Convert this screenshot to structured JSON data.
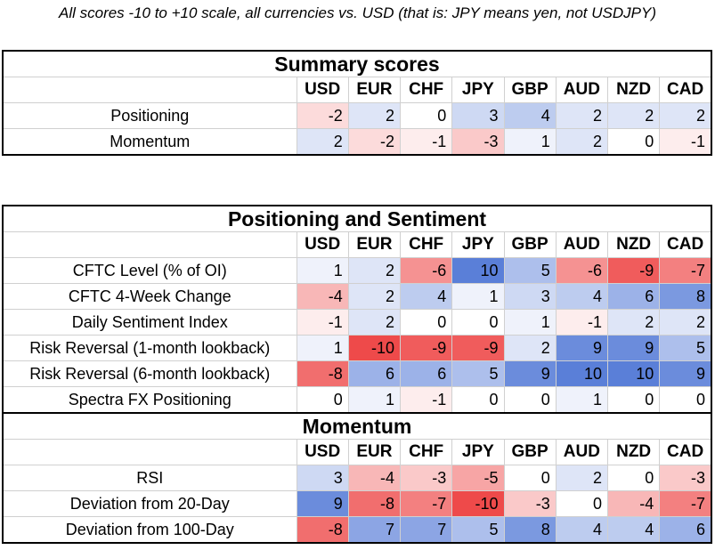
{
  "note": "All scores -10 to +10 scale, all currencies vs. USD (that is: JPY means yen, not USDJPY)",
  "currencies": [
    "USD",
    "EUR",
    "CHF",
    "JPY",
    "GBP",
    "AUD",
    "NZD",
    "CAD"
  ],
  "colors": {
    "positive": "#5a7fd8",
    "negative": "#ee4a4a",
    "neutral": "#ffffff"
  },
  "summary": {
    "title": "Summary scores",
    "rows": [
      {
        "label": "Positioning",
        "values": [
          -2,
          2,
          0,
          3,
          4,
          2,
          2,
          2
        ]
      },
      {
        "label": "Momentum",
        "values": [
          2,
          -2,
          -1,
          -3,
          1,
          2,
          0,
          -1
        ]
      }
    ]
  },
  "positioning": {
    "title": "Positioning and Sentiment",
    "rows": [
      {
        "label": "CFTC Level (% of OI)",
        "values": [
          1,
          2,
          -6,
          10,
          5,
          -6,
          -9,
          -7
        ]
      },
      {
        "label": "CFTC 4-Week Change",
        "values": [
          -4,
          2,
          4,
          1,
          3,
          4,
          6,
          8
        ]
      },
      {
        "label": "Daily Sentiment Index",
        "values": [
          -1,
          2,
          0,
          0,
          1,
          -1,
          2,
          2
        ]
      },
      {
        "label": "Risk Reversal (1-month lookback)",
        "values": [
          1,
          -10,
          -9,
          -9,
          2,
          9,
          9,
          5
        ]
      },
      {
        "label": "Risk Reversal (6-month lookback)",
        "values": [
          -8,
          6,
          6,
          5,
          9,
          10,
          10,
          9
        ]
      },
      {
        "label": "Spectra FX Positioning",
        "values": [
          0,
          1,
          -1,
          0,
          0,
          1,
          0,
          0
        ]
      }
    ]
  },
  "momentum": {
    "title": "Momentum",
    "rows": [
      {
        "label": "RSI",
        "values": [
          3,
          -4,
          -3,
          -5,
          0,
          2,
          0,
          -3
        ]
      },
      {
        "label": "Deviation from 20-Day",
        "values": [
          9,
          -8,
          -7,
          -10,
          -3,
          0,
          -4,
          -7
        ]
      },
      {
        "label": "Deviation from 100-Day",
        "values": [
          -8,
          7,
          7,
          5,
          8,
          4,
          4,
          6
        ]
      }
    ]
  }
}
